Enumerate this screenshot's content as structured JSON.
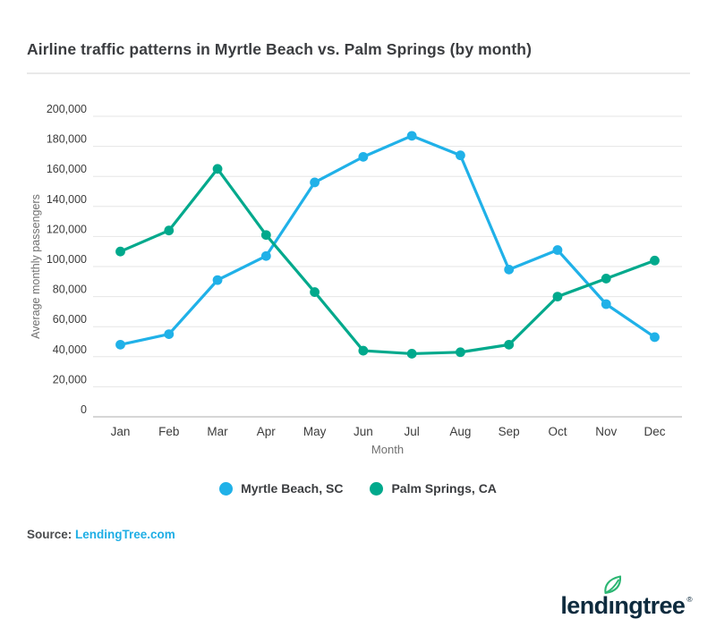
{
  "page": {
    "title": "Airline traffic patterns in Myrtle Beach vs. Palm Springs (by month)"
  },
  "chart_data": {
    "type": "line",
    "title": "Airline traffic patterns in Myrtle Beach vs. Palm Springs (by month)",
    "xlabel": "Month",
    "ylabel": "Average monthly passengers",
    "ylim": [
      0,
      200000
    ],
    "ytick_step": 20000,
    "grid": true,
    "legend_position": "bottom",
    "categories": [
      "Jan",
      "Feb",
      "Mar",
      "Apr",
      "May",
      "Jun",
      "Jul",
      "Aug",
      "Sep",
      "Oct",
      "Nov",
      "Dec"
    ],
    "series": [
      {
        "name": "Myrtle Beach, SC",
        "color": "#20b1e8",
        "values": [
          48000,
          55000,
          91000,
          107000,
          156000,
          173000,
          187000,
          174000,
          98000,
          111000,
          75000,
          53000
        ]
      },
      {
        "name": "Palm Springs, CA",
        "color": "#00a98c",
        "values": [
          110000,
          124000,
          165000,
          121000,
          83000,
          44000,
          42000,
          43000,
          48000,
          80000,
          92000,
          104000
        ]
      }
    ],
    "colors": {
      "gridline": "#e6e6e6",
      "axis_line": "#bdbdbd",
      "tick_label": "#3c3c3c",
      "axis_title": "#707070"
    }
  },
  "source": {
    "label": "Source:",
    "link": "LendingTree.com",
    "link_color": "#1faee5"
  },
  "logo": {
    "alt": "lendingtree",
    "word_pre": "lend",
    "word_i": "ı",
    "word_post": "ngtree",
    "registered": "®",
    "navy": "#0e2b3e",
    "leaf_green": "#2cb673"
  }
}
